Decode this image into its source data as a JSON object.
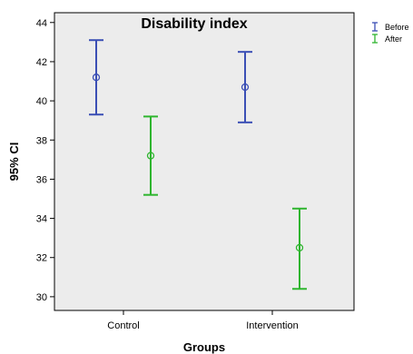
{
  "chart_data": {
    "type": "errorbar",
    "title": "Disability index",
    "xlabel": "Groups",
    "ylabel": "95% CI",
    "categories": [
      "Control",
      "Intervention"
    ],
    "ylim": [
      29.3,
      44.5
    ],
    "yticks": [
      30,
      32,
      34,
      36,
      38,
      40,
      42,
      44
    ],
    "grid": false,
    "legend": "top-right, outside plot",
    "series": [
      {
        "name": "Before",
        "color": "#3b4fb5",
        "means": [
          41.2,
          40.7
        ],
        "lower": [
          39.3,
          38.9
        ],
        "upper": [
          43.1,
          42.5
        ]
      },
      {
        "name": "After",
        "color": "#2fb52f",
        "means": [
          37.2,
          32.5
        ],
        "lower": [
          35.2,
          30.4
        ],
        "upper": [
          39.2,
          34.5
        ]
      }
    ],
    "plot_background": "#ececec"
  }
}
